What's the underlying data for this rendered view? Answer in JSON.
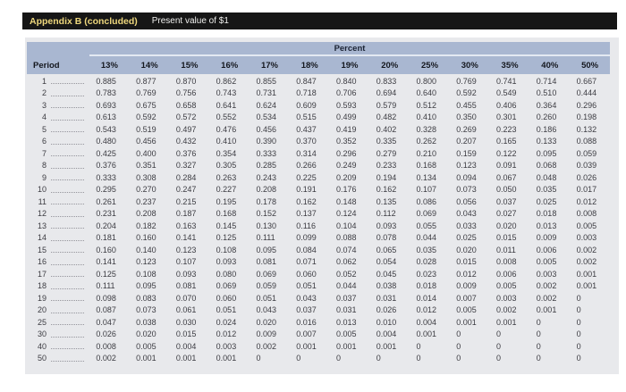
{
  "header": {
    "title": "Appendix B (concluded)",
    "subtitle": "Present value of $1"
  },
  "colors": {
    "title_bar_bg": "#161616",
    "title_text": "#eed77c",
    "subtitle_text": "#f0f0ee",
    "table_header_bg": "#a9b7d1",
    "table_body_bg": "#e8e9ec",
    "divider_line": "#e3e9f2"
  },
  "table": {
    "group_header": "Percent",
    "period_header": "Period",
    "columns": [
      "13%",
      "14%",
      "15%",
      "16%",
      "17%",
      "18%",
      "19%",
      "20%",
      "25%",
      "30%",
      "35%",
      "40%",
      "50%"
    ],
    "rows": [
      {
        "period": "1",
        "values": [
          "0.885",
          "0.877",
          "0.870",
          "0.862",
          "0.855",
          "0.847",
          "0.840",
          "0.833",
          "0.800",
          "0.769",
          "0.741",
          "0.714",
          "0.667"
        ]
      },
      {
        "period": "2",
        "values": [
          "0.783",
          "0.769",
          "0.756",
          "0.743",
          "0.731",
          "0.718",
          "0.706",
          "0.694",
          "0.640",
          "0.592",
          "0.549",
          "0.510",
          "0.444"
        ]
      },
      {
        "period": "3",
        "values": [
          "0.693",
          "0.675",
          "0.658",
          "0.641",
          "0.624",
          "0.609",
          "0.593",
          "0.579",
          "0.512",
          "0.455",
          "0.406",
          "0.364",
          "0.296"
        ]
      },
      {
        "period": "4",
        "values": [
          "0.613",
          "0.592",
          "0.572",
          "0.552",
          "0.534",
          "0.515",
          "0.499",
          "0.482",
          "0.410",
          "0.350",
          "0.301",
          "0.260",
          "0.198"
        ]
      },
      {
        "period": "5",
        "values": [
          "0.543",
          "0.519",
          "0.497",
          "0.476",
          "0.456",
          "0.437",
          "0.419",
          "0.402",
          "0.328",
          "0.269",
          "0.223",
          "0.186",
          "0.132"
        ]
      },
      {
        "period": "6",
        "values": [
          "0.480",
          "0.456",
          "0.432",
          "0.410",
          "0.390",
          "0.370",
          "0.352",
          "0.335",
          "0.262",
          "0.207",
          "0.165",
          "0.133",
          "0.088"
        ]
      },
      {
        "period": "7",
        "values": [
          "0.425",
          "0.400",
          "0.376",
          "0.354",
          "0.333",
          "0.314",
          "0.296",
          "0.279",
          "0.210",
          "0.159",
          "0.122",
          "0.095",
          "0.059"
        ]
      },
      {
        "period": "8",
        "values": [
          "0.376",
          "0.351",
          "0.327",
          "0.305",
          "0.285",
          "0.266",
          "0.249",
          "0.233",
          "0.168",
          "0.123",
          "0.091",
          "0.068",
          "0.039"
        ]
      },
      {
        "period": "9",
        "values": [
          "0.333",
          "0.308",
          "0.284",
          "0.263",
          "0.243",
          "0.225",
          "0.209",
          "0.194",
          "0.134",
          "0.094",
          "0.067",
          "0.048",
          "0.026"
        ]
      },
      {
        "period": "10",
        "values": [
          "0.295",
          "0.270",
          "0.247",
          "0.227",
          "0.208",
          "0.191",
          "0.176",
          "0.162",
          "0.107",
          "0.073",
          "0.050",
          "0.035",
          "0.017"
        ]
      },
      {
        "period": "11",
        "values": [
          "0.261",
          "0.237",
          "0.215",
          "0.195",
          "0.178",
          "0.162",
          "0.148",
          "0.135",
          "0.086",
          "0.056",
          "0.037",
          "0.025",
          "0.012"
        ]
      },
      {
        "period": "12",
        "values": [
          "0.231",
          "0.208",
          "0.187",
          "0.168",
          "0.152",
          "0.137",
          "0.124",
          "0.112",
          "0.069",
          "0.043",
          "0.027",
          "0.018",
          "0.008"
        ]
      },
      {
        "period": "13",
        "values": [
          "0.204",
          "0.182",
          "0.163",
          "0.145",
          "0.130",
          "0.116",
          "0.104",
          "0.093",
          "0.055",
          "0.033",
          "0.020",
          "0.013",
          "0.005"
        ]
      },
      {
        "period": "14",
        "values": [
          "0.181",
          "0.160",
          "0.141",
          "0.125",
          "0.111",
          "0.099",
          "0.088",
          "0.078",
          "0.044",
          "0.025",
          "0.015",
          "0.009",
          "0.003"
        ]
      },
      {
        "period": "15",
        "values": [
          "0.160",
          "0.140",
          "0.123",
          "0.108",
          "0.095",
          "0.084",
          "0.074",
          "0.065",
          "0.035",
          "0.020",
          "0.011",
          "0.006",
          "0.002"
        ]
      },
      {
        "period": "16",
        "values": [
          "0.141",
          "0.123",
          "0.107",
          "0.093",
          "0.081",
          "0.071",
          "0.062",
          "0.054",
          "0.028",
          "0.015",
          "0.008",
          "0.005",
          "0.002"
        ]
      },
      {
        "period": "17",
        "values": [
          "0.125",
          "0.108",
          "0.093",
          "0.080",
          "0.069",
          "0.060",
          "0.052",
          "0.045",
          "0.023",
          "0.012",
          "0.006",
          "0.003",
          "0.001"
        ]
      },
      {
        "period": "18",
        "values": [
          "0.111",
          "0.095",
          "0.081",
          "0.069",
          "0.059",
          "0.051",
          "0.044",
          "0.038",
          "0.018",
          "0.009",
          "0.005",
          "0.002",
          "0.001"
        ]
      },
      {
        "period": "19",
        "values": [
          "0.098",
          "0.083",
          "0.070",
          "0.060",
          "0.051",
          "0.043",
          "0.037",
          "0.031",
          "0.014",
          "0.007",
          "0.003",
          "0.002",
          "0"
        ]
      },
      {
        "period": "20",
        "values": [
          "0.087",
          "0.073",
          "0.061",
          "0.051",
          "0.043",
          "0.037",
          "0.031",
          "0.026",
          "0.012",
          "0.005",
          "0.002",
          "0.001",
          "0"
        ]
      },
      {
        "period": "25",
        "values": [
          "0.047",
          "0.038",
          "0.030",
          "0.024",
          "0.020",
          "0.016",
          "0.013",
          "0.010",
          "0.004",
          "0.001",
          "0.001",
          "0",
          "0"
        ]
      },
      {
        "period": "30",
        "values": [
          "0.026",
          "0.020",
          "0.015",
          "0.012",
          "0.009",
          "0.007",
          "0.005",
          "0.004",
          "0.001",
          "0",
          "0",
          "0",
          "0"
        ]
      },
      {
        "period": "40",
        "values": [
          "0.008",
          "0.005",
          "0.004",
          "0.003",
          "0.002",
          "0.001",
          "0.001",
          "0.001",
          "0",
          "0",
          "0",
          "0",
          "0"
        ]
      },
      {
        "period": "50",
        "values": [
          "0.002",
          "0.001",
          "0.001",
          "0.001",
          "0",
          "0",
          "0",
          "0",
          "0",
          "0",
          "0",
          "0",
          "0"
        ]
      }
    ]
  }
}
